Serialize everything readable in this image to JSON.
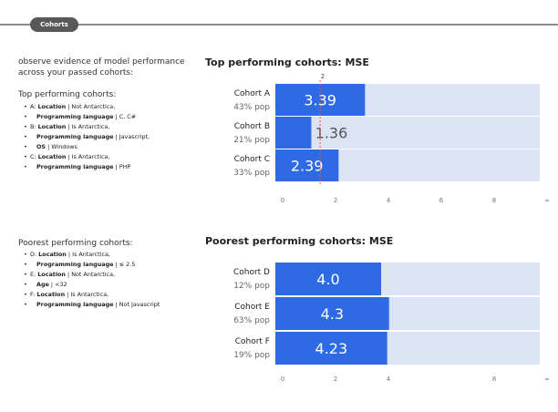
{
  "header": {
    "tab_label": "Cohorts"
  },
  "intro": "observe evidence of model performance across your passed cohorts:",
  "top": {
    "heading": "Top performing cohorts:",
    "items": [
      {
        "prefix": "A:",
        "lines": [
          [
            {
              "k": "Location"
            },
            {
              "t": " | Not Antarctica,"
            }
          ],
          [
            {
              "k": "Programming language"
            },
            {
              "t": " | C, C#"
            }
          ]
        ]
      },
      {
        "prefix": "B:",
        "lines": [
          [
            {
              "k": "Location"
            },
            {
              "t": " | Is Antarctica,"
            }
          ],
          [
            {
              "k": "Programming language"
            },
            {
              "t": " | Javascript,"
            }
          ],
          [
            {
              "k": "OS"
            },
            {
              "t": " | Windows"
            }
          ]
        ]
      },
      {
        "prefix": "C:",
        "lines": [
          [
            {
              "k": "Location"
            },
            {
              "t": " | Is Antarctica,"
            }
          ],
          [
            {
              "k": "Programming language"
            },
            {
              "t": " | PHP"
            }
          ]
        ]
      }
    ]
  },
  "poor": {
    "heading": "Poorest performing cohorts:",
    "items": [
      {
        "prefix": "D:",
        "lines": [
          [
            {
              "k": "Location"
            },
            {
              "t": " | Is Antarctica,"
            }
          ],
          [
            {
              "k": "Programming language"
            },
            {
              "t": " | ≤ 2.5"
            }
          ]
        ]
      },
      {
        "prefix": "E:",
        "lines": [
          [
            {
              "k": "Location"
            },
            {
              "t": " | Not Antarctica,"
            }
          ],
          [
            {
              "k": "Age"
            },
            {
              "t": " | <32"
            }
          ]
        ]
      },
      {
        "prefix": "F:",
        "lines": [
          [
            {
              "k": "Location"
            },
            {
              "t": " | Is Antarctica,"
            }
          ],
          [
            {
              "k": "Programming language"
            },
            {
              "t": " | Not Javascript"
            }
          ]
        ]
      }
    ]
  },
  "chart_data": [
    {
      "type": "bar",
      "orientation": "horizontal",
      "title": "Top performing cohorts: MSE",
      "categories": [
        "Cohort A",
        "Cohort B",
        "Cohort C"
      ],
      "sublabels": [
        "43% pop",
        "21% pop",
        "33% pop"
      ],
      "values": [
        3.39,
        1.36,
        2.39
      ],
      "value_labels": [
        "3.39",
        "1.36",
        "2.39"
      ],
      "xlim": [
        0,
        10
      ],
      "ticks": [
        "0",
        "2",
        "4",
        "6",
        "8",
        "∞"
      ],
      "tick_values": [
        0,
        2,
        4,
        6,
        8,
        10
      ],
      "reference": {
        "value": 2,
        "label": "2"
      },
      "colors": {
        "bar": "#2e6ae6",
        "track": "#dbe3f5",
        "ref": "#e05a3a"
      }
    },
    {
      "type": "bar",
      "orientation": "horizontal",
      "title": "Poorest performing cohorts: MSE",
      "categories": [
        "Cohort D",
        "Cohort E",
        "Cohort F"
      ],
      "sublabels": [
        "12% pop",
        "63% pop",
        "19% pop"
      ],
      "values": [
        4.0,
        4.3,
        4.23
      ],
      "value_labels": [
        "4.0",
        "4.3",
        "4.23"
      ],
      "xlim": [
        0,
        10
      ],
      "ticks": [
        "0",
        "2",
        "4",
        "8",
        "∞"
      ],
      "tick_values": [
        0,
        2,
        4,
        8,
        10
      ],
      "colors": {
        "bar": "#2e6ae6",
        "track": "#dbe3f5"
      }
    }
  ]
}
